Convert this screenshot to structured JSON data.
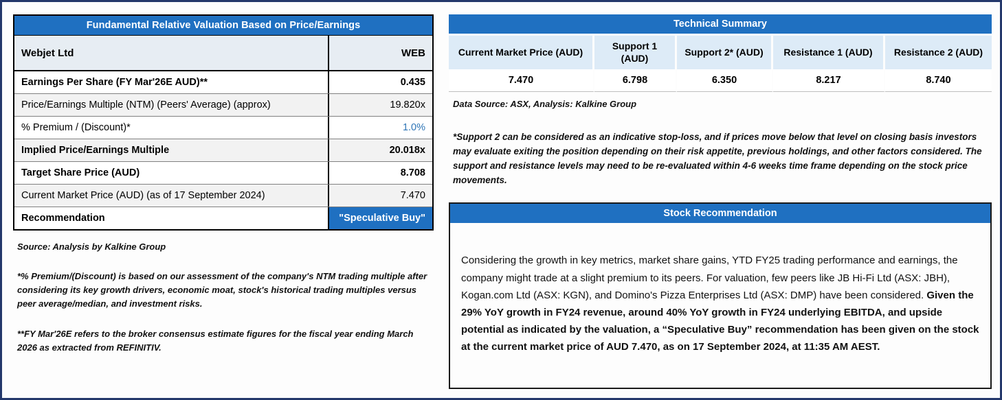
{
  "colors": {
    "header_blue": "#1F70C1",
    "light_blue_header": "#DDEBF7",
    "row_alt_gray": "#F2F2F2",
    "accent_text_blue": "#2E75B6",
    "page_border_navy": "#24386B"
  },
  "valuation_table": {
    "title": "Fundamental Relative Valuation Based on Price/Earnings",
    "company": "Webjet Ltd",
    "ticker": "WEB",
    "rows": [
      {
        "label": "Earnings Per Share (FY Mar'26E AUD)**",
        "value": "0.435"
      },
      {
        "label": "Price/Earnings Multiple (NTM) (Peers' Average) (approx)",
        "value": "19.820x"
      },
      {
        "label": "% Premium / (Discount)*",
        "value": "1.0%"
      },
      {
        "label": "Implied Price/Earnings Multiple",
        "value": "20.018x"
      },
      {
        "label": "Target Share Price (AUD)",
        "value": "8.708"
      },
      {
        "label": "Current Market Price (AUD) (as of 17 September 2024)",
        "value": "7.470"
      },
      {
        "label": "Recommendation",
        "value": "\"Speculative Buy\""
      }
    ],
    "source_note": "Source: Analysis by Kalkine Group",
    "footnote_premium": "*% Premium/(Discount) is based on our assessment of the company's NTM trading multiple after considering its key growth drivers, economic moat, stock's historical trading multiples versus peer average/median, and investment risks.",
    "footnote_fy": "**FY Mar'26E refers to the broker consensus estimate figures for the fiscal year ending March 2026 as extracted from REFINITIV."
  },
  "technical_summary": {
    "title": "Technical Summary",
    "columns": [
      "Current Market Price (AUD)",
      "Support 1 (AUD)",
      "Support 2* (AUD)",
      "Resistance 1 (AUD)",
      "Resistance 2 (AUD)"
    ],
    "values": [
      "7.470",
      "6.798",
      "6.350",
      "8.217",
      "8.740"
    ],
    "source_note": "Data Source: ASX, Analysis: Kalkine Group",
    "footnote": "*Support 2 can be considered as an indicative stop-loss, and if prices move below that level on closing basis investors may evaluate exiting the position depending on their risk appetite, previous holdings, and other factors considered. The support and resistance levels may need to be re-evaluated within 4-6 weeks time frame depending on the stock price movements."
  },
  "stock_recommendation": {
    "title": "Stock Recommendation",
    "body_normal": "Considering the growth in key metrics, market share gains, YTD FY25 trading performance and earnings, the company might trade at a slight premium to its peers. For valuation, few peers like JB Hi-Fi Ltd (ASX: JBH), Kogan.com Ltd (ASX: KGN), and Domino's Pizza Enterprises Ltd (ASX: DMP) have been considered. ",
    "body_bold": "Given the 29% YoY growth in FY24 revenue, around 40% YoY growth in FY24 underlying EBITDA, and upside potential as indicated by the valuation, a “Speculative Buy” recommendation has been given on the stock at the current market price of AUD 7.470, as on 17 September 2024, at 11:35 AM AEST."
  }
}
